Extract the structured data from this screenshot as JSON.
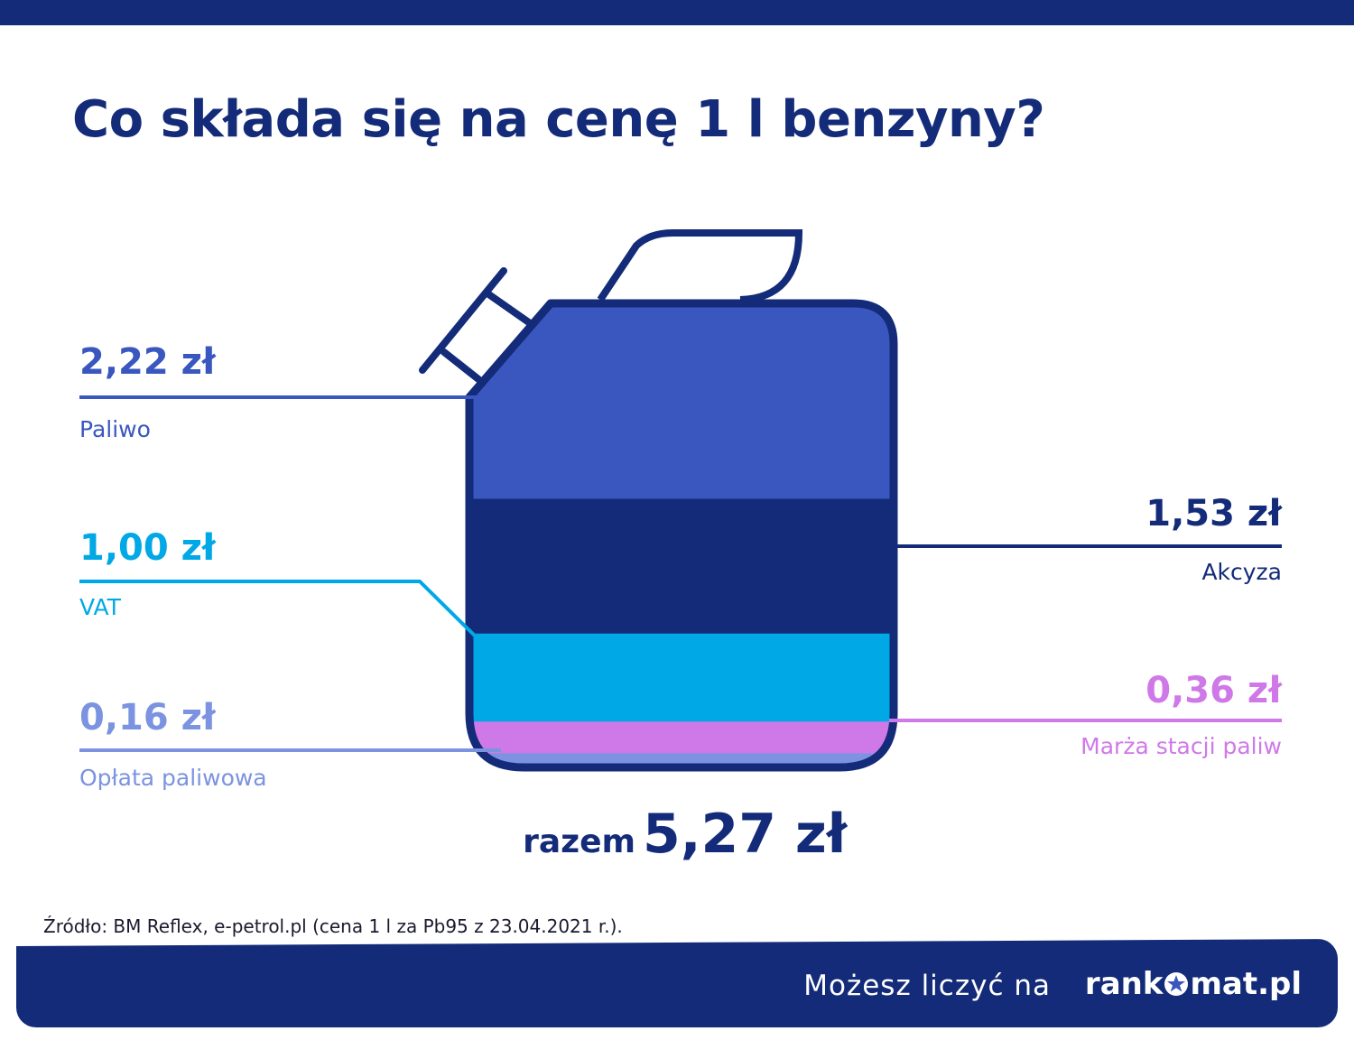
{
  "title": "Co składa się na cenę 1 l benzyny?",
  "chart_data": {
    "type": "bar",
    "title": "Co składa się na cenę 1 l benzyny?",
    "unit": "zł",
    "segments": [
      {
        "name": "Paliwo",
        "value": 2.22,
        "label": "2,22 zł",
        "color": "#3a57c0"
      },
      {
        "name": "Akcyza",
        "value": 1.53,
        "label": "1,53 zł",
        "color": "#132b78"
      },
      {
        "name": "VAT",
        "value": 1.0,
        "label": "1,00 zł",
        "color": "#00a8e6"
      },
      {
        "name": "Marża stacji paliw",
        "value": 0.36,
        "label": "0,36 zł",
        "color": "#cf79e8"
      },
      {
        "name": "Opłata paliwowa",
        "value": 0.16,
        "label": "0,16 zł",
        "color": "#7b93e0"
      }
    ],
    "total": {
      "prefix": "razem",
      "value": 5.27,
      "label": "5,27 zł"
    }
  },
  "source": "Źródło: BM Reflex, e-petrol.pl (cena 1 l za Pb95 z 23.04.2021 r.).",
  "footer": {
    "tagline": "Możesz liczyć na",
    "logo_left": "rank",
    "logo_right": "mat.pl"
  },
  "colors": {
    "navy": "#132b78",
    "white": "#ffffff"
  },
  "icons": [
    "jerrycan-icon",
    "star-icon"
  ]
}
